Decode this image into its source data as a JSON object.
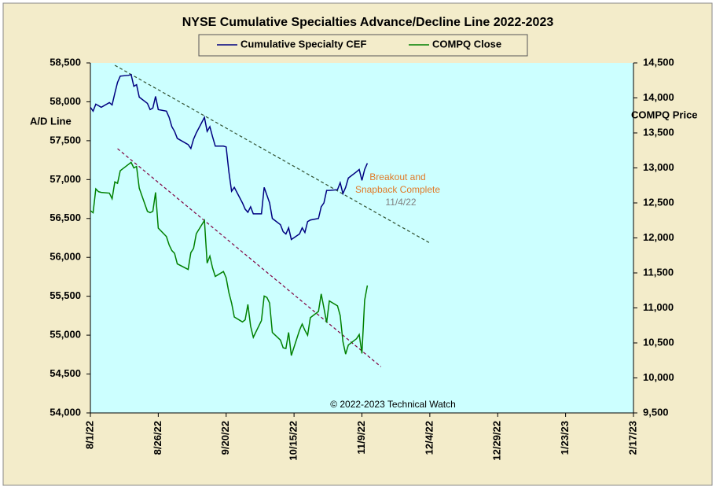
{
  "chart_data": {
    "type": "line",
    "title": "NYSE Cumulative  Specialties  Advance/Decline  Line  2022-2023",
    "y_label": "A/D Line",
    "y2_label": "COMPQ Price",
    "copyright": "© 2022-2023  Technical Watch",
    "annotation": {
      "lines": [
        "Breakout and",
        "Snapback Complete"
      ],
      "color": "#e07a28",
      "date": "11/4/22",
      "date_color": "#808080"
    },
    "x": [
      "2022-08-01",
      "2022-08-02",
      "2022-08-03",
      "2022-08-04",
      "2022-08-05",
      "2022-08-08",
      "2022-08-09",
      "2022-08-10",
      "2022-08-11",
      "2022-08-12",
      "2022-08-15",
      "2022-08-16",
      "2022-08-17",
      "2022-08-18",
      "2022-08-19",
      "2022-08-22",
      "2022-08-23",
      "2022-08-24",
      "2022-08-25",
      "2022-08-26",
      "2022-08-29",
      "2022-08-30",
      "2022-08-31",
      "2022-09-01",
      "2022-09-02",
      "2022-09-06",
      "2022-09-07",
      "2022-09-08",
      "2022-09-09",
      "2022-09-12",
      "2022-09-13",
      "2022-09-14",
      "2022-09-15",
      "2022-09-16",
      "2022-09-19",
      "2022-09-20",
      "2022-09-21",
      "2022-09-22",
      "2022-09-23",
      "2022-09-26",
      "2022-09-27",
      "2022-09-28",
      "2022-09-29",
      "2022-09-30",
      "2022-10-03",
      "2022-10-04",
      "2022-10-05",
      "2022-10-06",
      "2022-10-07",
      "2022-10-10",
      "2022-10-11",
      "2022-10-12",
      "2022-10-13",
      "2022-10-14",
      "2022-10-17",
      "2022-10-18",
      "2022-10-19",
      "2022-10-20",
      "2022-10-21",
      "2022-10-24",
      "2022-10-25",
      "2022-10-26",
      "2022-10-27",
      "2022-10-28",
      "2022-10-31",
      "2022-11-01",
      "2022-11-02",
      "2022-11-03",
      "2022-11-04",
      "2022-11-07",
      "2022-11-08",
      "2022-11-09",
      "2022-11-10",
      "2022-11-11"
    ],
    "series": [
      {
        "name": "Cumulative Specialty CEF",
        "color": "#000080",
        "axis": "y",
        "values": [
          57930,
          57880,
          57970,
          57950,
          57930,
          57990,
          57960,
          58110,
          58250,
          58330,
          58340,
          58350,
          58200,
          58220,
          58060,
          57980,
          57900,
          57920,
          58070,
          57900,
          57880,
          57800,
          57680,
          57620,
          57530,
          57450,
          57400,
          57520,
          57600,
          57800,
          57620,
          57680,
          57550,
          57430,
          57430,
          57420,
          57100,
          56850,
          56900,
          56700,
          56620,
          56580,
          56650,
          56560,
          56560,
          56900,
          56800,
          56700,
          56500,
          56420,
          56330,
          56300,
          56380,
          56230,
          56300,
          56380,
          56320,
          56460,
          56480,
          56500,
          56650,
          56700,
          56860,
          56860,
          56870,
          56960,
          56820,
          56900,
          57020,
          57100,
          57130,
          56990,
          57130,
          57210
        ]
      },
      {
        "name": "COMPQ Close",
        "color": "#008000",
        "axis": "y2",
        "values": [
          12390,
          12360,
          12700,
          12660,
          12650,
          12640,
          12560,
          12800,
          12780,
          12960,
          13050,
          13080,
          13000,
          13020,
          12710,
          12380,
          12360,
          12380,
          12650,
          12140,
          12020,
          11900,
          11820,
          11780,
          11630,
          11550,
          11790,
          11850,
          12060,
          12250,
          11640,
          11740,
          11570,
          11450,
          11520,
          11430,
          11220,
          11070,
          10870,
          10800,
          10830,
          11050,
          10740,
          10580,
          10820,
          11170,
          11150,
          11070,
          10650,
          10540,
          10430,
          10420,
          10650,
          10320,
          10680,
          10770,
          10680,
          10610,
          10860,
          10950,
          11200,
          11000,
          10790,
          11100,
          11030,
          10890,
          10520,
          10340,
          10470,
          10560,
          10620,
          10350,
          11110,
          11320
        ]
      }
    ],
    "trendlines": [
      {
        "color": "#2f4f2f",
        "axis": "y",
        "x": [
          "2022-08-10",
          "2022-12-04"
        ],
        "y": [
          58470,
          56185
        ]
      },
      {
        "color": "#800040",
        "axis": "y2",
        "x": [
          "2022-08-11",
          "2022-11-16"
        ],
        "y": [
          13275,
          10160
        ]
      }
    ],
    "xlim": [
      "2022-08-01",
      "2023-02-17"
    ],
    "xticks": [
      {
        "value": "2022-08-01",
        "label": "8/1/22"
      },
      {
        "value": "2022-08-26",
        "label": "8/26/22"
      },
      {
        "value": "2022-09-20",
        "label": "9/20/22"
      },
      {
        "value": "2022-10-15",
        "label": "10/15/22"
      },
      {
        "value": "2022-11-09",
        "label": "11/9/22"
      },
      {
        "value": "2022-12-04",
        "label": "12/4/22"
      },
      {
        "value": "2022-12-29",
        "label": "12/29/22"
      },
      {
        "value": "2023-01-23",
        "label": "1/23/23"
      },
      {
        "value": "2023-02-17",
        "label": "2/17/23"
      }
    ],
    "ylim": [
      54000,
      58500
    ],
    "yticks": [
      {
        "value": 54000,
        "label": "54,000"
      },
      {
        "value": 54500,
        "label": "54,500"
      },
      {
        "value": 55000,
        "label": "55,000"
      },
      {
        "value": 55500,
        "label": "55,500"
      },
      {
        "value": 56000,
        "label": "56,000"
      },
      {
        "value": 56500,
        "label": "56,500"
      },
      {
        "value": 57000,
        "label": "57,000"
      },
      {
        "value": 57500,
        "label": "57,500"
      },
      {
        "value": 58000,
        "label": "58,000"
      },
      {
        "value": 58500,
        "label": "58,500"
      }
    ],
    "y2lim": [
      9500,
      14500
    ],
    "y2ticks": [
      {
        "value": 9500,
        "label": "9,500"
      },
      {
        "value": 10000,
        "label": "10,000"
      },
      {
        "value": 10500,
        "label": "10,500"
      },
      {
        "value": 11000,
        "label": "11,000"
      },
      {
        "value": 11500,
        "label": "11,500"
      },
      {
        "value": 12000,
        "label": "12,000"
      },
      {
        "value": 12500,
        "label": "12,500"
      },
      {
        "value": 13000,
        "label": "13,000"
      },
      {
        "value": 13500,
        "label": "13,500"
      },
      {
        "value": 14000,
        "label": "14,000"
      },
      {
        "value": 14500,
        "label": "14,500"
      }
    ],
    "plot_background": "#ccffff",
    "background": "#f3ecca"
  }
}
